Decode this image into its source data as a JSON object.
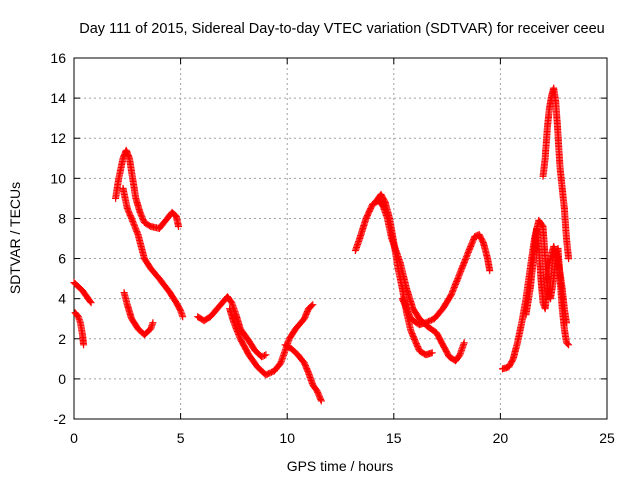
{
  "chart_data": {
    "type": "scatter",
    "title": "Day 111 of 2015, Sidereal Day-to-day VTEC variation (SDTVAR) for receiver ceeu",
    "xlabel": "GPS time / hours",
    "ylabel": "SDTVAR / TECUs",
    "xlim": [
      0,
      25
    ],
    "ylim": [
      -2,
      16
    ],
    "xticks": [
      "0",
      "5",
      "10",
      "15",
      "20",
      "25"
    ],
    "yticks": [
      "-2",
      "0",
      "2",
      "4",
      "6",
      "8",
      "10",
      "12",
      "14",
      "16"
    ],
    "grid": true,
    "marker": "plus",
    "color": "#ff0000",
    "segments": [
      [
        [
          0.0,
          4.8
        ],
        [
          0.2,
          4.6
        ],
        [
          0.4,
          4.4
        ],
        [
          0.6,
          4.1
        ],
        [
          0.8,
          3.8
        ]
      ],
      [
        [
          0.05,
          3.3
        ],
        [
          0.2,
          3.1
        ],
        [
          0.3,
          2.8
        ],
        [
          0.4,
          2.2
        ],
        [
          0.45,
          1.7
        ]
      ],
      [
        [
          1.95,
          9.0
        ],
        [
          2.1,
          10.0
        ],
        [
          2.3,
          11.0
        ],
        [
          2.45,
          11.4
        ],
        [
          2.6,
          11.0
        ],
        [
          2.75,
          10.0
        ],
        [
          2.9,
          9.0
        ],
        [
          3.1,
          8.3
        ],
        [
          3.3,
          7.8
        ],
        [
          3.6,
          7.6
        ],
        [
          4.0,
          7.5
        ],
        [
          4.3,
          7.9
        ],
        [
          4.6,
          8.3
        ],
        [
          4.8,
          8.1
        ],
        [
          4.9,
          7.6
        ]
      ],
      [
        [
          2.3,
          9.5
        ],
        [
          2.5,
          8.5
        ],
        [
          2.7,
          8.0
        ],
        [
          3.0,
          7.2
        ],
        [
          3.3,
          6.0
        ],
        [
          3.6,
          5.5
        ],
        [
          4.0,
          5.0
        ],
        [
          4.5,
          4.3
        ],
        [
          4.8,
          3.8
        ],
        [
          5.0,
          3.4
        ],
        [
          5.1,
          3.1
        ]
      ],
      [
        [
          2.35,
          4.3
        ],
        [
          2.5,
          3.7
        ],
        [
          2.7,
          3.0
        ],
        [
          3.0,
          2.5
        ],
        [
          3.3,
          2.2
        ],
        [
          3.6,
          2.5
        ],
        [
          3.7,
          2.8
        ]
      ],
      [
        [
          5.8,
          3.1
        ],
        [
          6.1,
          2.9
        ],
        [
          6.4,
          3.1
        ],
        [
          6.8,
          3.6
        ],
        [
          7.2,
          4.1
        ],
        [
          7.4,
          3.8
        ],
        [
          7.6,
          3.2
        ],
        [
          7.8,
          2.5
        ],
        [
          8.2,
          1.9
        ],
        [
          8.5,
          1.4
        ],
        [
          8.8,
          1.1
        ],
        [
          9.0,
          1.2
        ]
      ],
      [
        [
          7.3,
          3.5
        ],
        [
          7.5,
          2.8
        ],
        [
          7.8,
          2.0
        ],
        [
          8.2,
          1.2
        ],
        [
          8.6,
          0.6
        ],
        [
          9.0,
          0.2
        ],
        [
          9.4,
          0.4
        ],
        [
          9.7,
          0.8
        ],
        [
          9.9,
          1.4
        ],
        [
          10.1,
          2.0
        ],
        [
          10.4,
          2.5
        ],
        [
          10.8,
          3.0
        ],
        [
          11.0,
          3.5
        ],
        [
          11.2,
          3.7
        ]
      ],
      [
        [
          9.9,
          1.7
        ],
        [
          10.2,
          1.5
        ],
        [
          10.5,
          1.2
        ],
        [
          10.8,
          0.8
        ],
        [
          11.0,
          0.3
        ],
        [
          11.2,
          -0.3
        ],
        [
          11.4,
          -0.6
        ],
        [
          11.6,
          -1.1
        ]
      ],
      [
        [
          13.2,
          6.4
        ],
        [
          13.4,
          7.0
        ],
        [
          13.7,
          8.0
        ],
        [
          14.0,
          8.7
        ],
        [
          14.3,
          8.9
        ],
        [
          14.5,
          8.6
        ],
        [
          14.7,
          8.0
        ],
        [
          14.9,
          7.0
        ],
        [
          15.1,
          6.4
        ],
        [
          15.3,
          5.8
        ],
        [
          15.6,
          4.5
        ],
        [
          15.9,
          3.5
        ],
        [
          16.2,
          3.0
        ],
        [
          16.6,
          2.6
        ],
        [
          17.0,
          2.3
        ],
        [
          17.3,
          1.7
        ],
        [
          17.6,
          1.1
        ],
        [
          17.9,
          0.9
        ],
        [
          18.1,
          1.2
        ],
        [
          18.3,
          1.8
        ]
      ],
      [
        [
          14.2,
          8.9
        ],
        [
          14.4,
          9.2
        ],
        [
          14.6,
          8.8
        ],
        [
          14.8,
          8.0
        ],
        [
          15.0,
          6.8
        ],
        [
          15.2,
          5.5
        ],
        [
          15.4,
          4.5
        ],
        [
          15.6,
          3.3
        ],
        [
          15.8,
          2.4
        ],
        [
          16.0,
          1.9
        ],
        [
          16.2,
          1.4
        ],
        [
          16.5,
          1.2
        ],
        [
          16.8,
          1.3
        ]
      ],
      [
        [
          15.4,
          4.0
        ],
        [
          15.8,
          3.0
        ],
        [
          16.2,
          2.7
        ],
        [
          16.5,
          2.8
        ],
        [
          16.9,
          3.0
        ],
        [
          17.3,
          3.5
        ],
        [
          17.7,
          4.2
        ],
        [
          18.0,
          5.0
        ],
        [
          18.3,
          5.8
        ],
        [
          18.6,
          6.6
        ],
        [
          18.8,
          7.1
        ],
        [
          19.0,
          7.2
        ],
        [
          19.2,
          6.8
        ],
        [
          19.4,
          6.0
        ],
        [
          19.5,
          5.4
        ]
      ],
      [
        [
          20.1,
          0.5
        ],
        [
          20.4,
          0.6
        ],
        [
          20.6,
          1.0
        ],
        [
          20.8,
          1.8
        ],
        [
          21.0,
          2.8
        ],
        [
          21.2,
          4.0
        ],
        [
          21.4,
          5.5
        ],
        [
          21.6,
          7.0
        ],
        [
          21.8,
          7.9
        ],
        [
          22.0,
          7.6
        ],
        [
          22.1,
          6.0
        ],
        [
          22.2,
          4.5
        ],
        [
          22.35,
          4.0
        ],
        [
          22.5,
          5.0
        ],
        [
          22.6,
          6.2
        ],
        [
          22.7,
          6.5
        ],
        [
          22.8,
          5.0
        ],
        [
          22.9,
          3.5
        ],
        [
          23.0,
          2.5
        ],
        [
          23.1,
          1.8
        ],
        [
          23.2,
          1.7
        ]
      ],
      [
        [
          21.2,
          3.2
        ],
        [
          21.4,
          4.5
        ],
        [
          21.6,
          6.5
        ],
        [
          21.7,
          7.5
        ],
        [
          21.8,
          6.6
        ],
        [
          21.9,
          5.0
        ],
        [
          22.0,
          3.8
        ],
        [
          22.1,
          3.5
        ],
        [
          22.2,
          4.5
        ],
        [
          22.3,
          5.8
        ],
        [
          22.5,
          6.6
        ],
        [
          22.7,
          6.0
        ],
        [
          22.9,
          4.5
        ],
        [
          23.0,
          3.5
        ],
        [
          23.1,
          2.8
        ]
      ],
      [
        [
          22.0,
          10.1
        ],
        [
          22.1,
          11.0
        ],
        [
          22.2,
          12.5
        ],
        [
          22.3,
          13.5
        ],
        [
          22.4,
          14.1
        ],
        [
          22.5,
          14.5
        ],
        [
          22.6,
          13.8
        ],
        [
          22.7,
          12.2
        ],
        [
          22.8,
          10.5
        ],
        [
          22.9,
          9.5
        ],
        [
          23.0,
          8.5
        ],
        [
          23.1,
          7.0
        ],
        [
          23.2,
          6.0
        ]
      ]
    ]
  }
}
